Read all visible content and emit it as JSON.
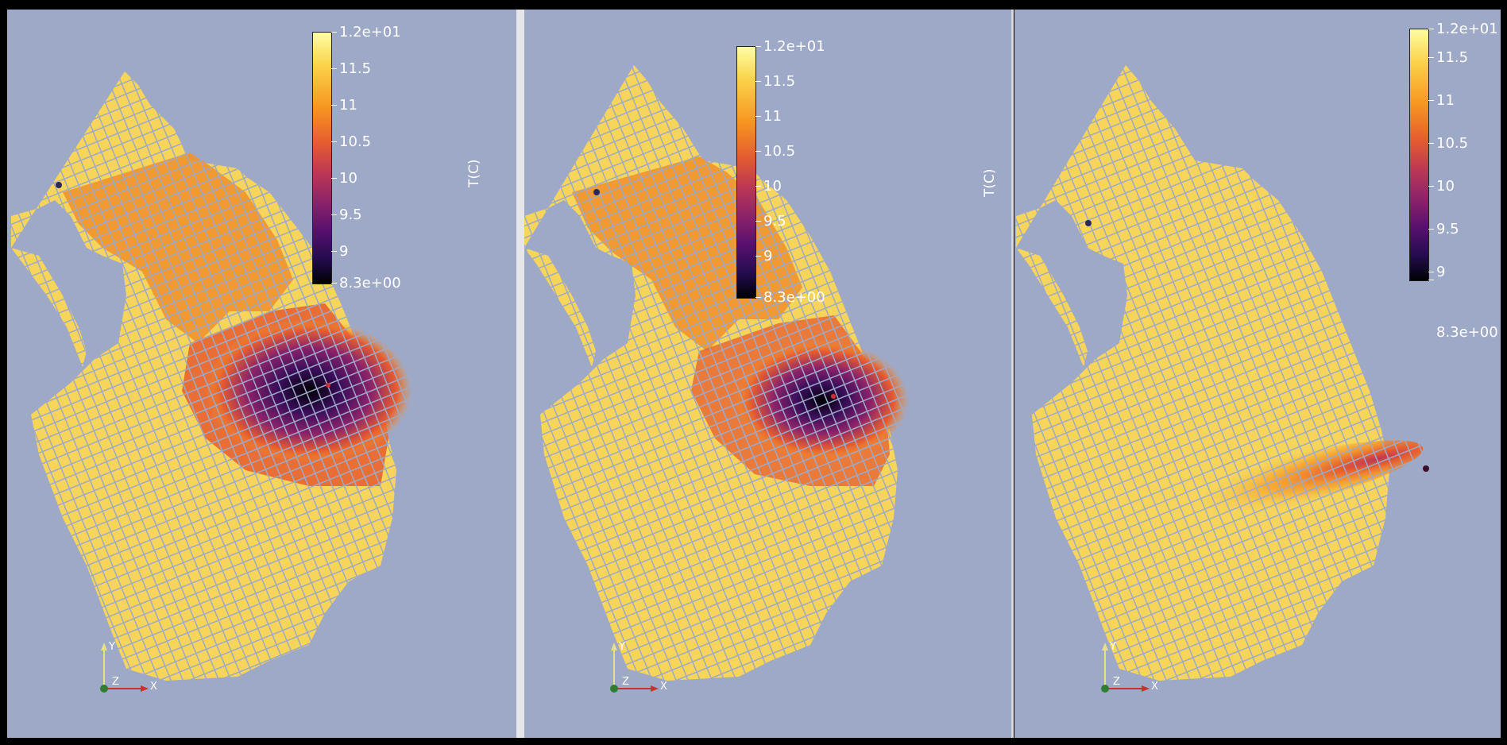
{
  "views": [
    {
      "colorbar": {
        "labels": [
          "1.2e+01",
          "11.5",
          "11",
          "10.5",
          "10",
          "9.5",
          "9",
          "8.3e+00"
        ],
        "title": "T(C)"
      },
      "axes": {
        "y": "Y",
        "z": "Z",
        "x": "X"
      },
      "cold_zone_strength": 1.0
    },
    {
      "colorbar": {
        "labels": [
          "1.2e+01",
          "11.5",
          "11",
          "10.5",
          "10",
          "9.5",
          "9",
          "8.3e+00"
        ],
        "title": "T(C)"
      },
      "axes": {
        "y": "Y",
        "z": "Z",
        "x": "X"
      },
      "cold_zone_strength": 0.75
    },
    {
      "colorbar": {
        "labels": [
          "1.2e+01",
          "11.5",
          "11",
          "10.5",
          "10",
          "9.5",
          "9",
          "8.3e+00"
        ],
        "title": ""
      },
      "axes": {
        "y": "Y",
        "z": "Z",
        "x": "X"
      },
      "cold_zone_strength": 0.15
    }
  ],
  "colors": {
    "background": "#9ea9c8",
    "mesh_warm": "#f7d45a",
    "mesh_mid": "#f0922f",
    "mesh_cool": "#6a1a78",
    "mesh_cold": "#0d0621"
  }
}
